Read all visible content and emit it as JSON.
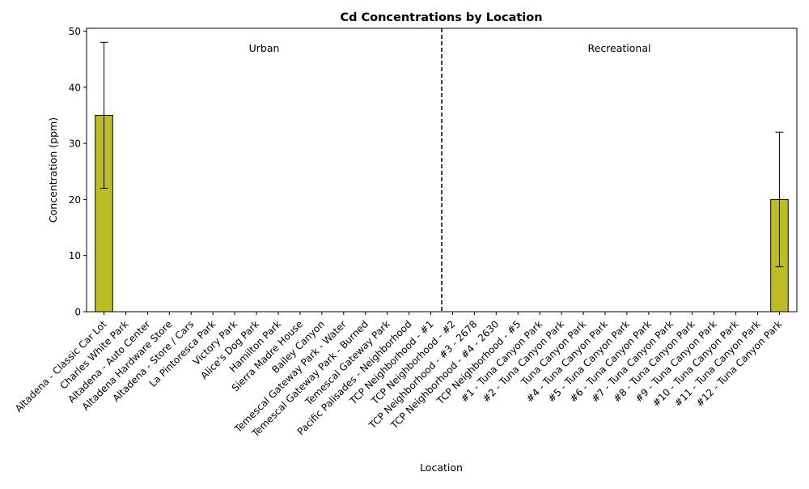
{
  "chart_data": {
    "type": "bar",
    "title": "Cd Concentrations by Location",
    "xlabel": "Location",
    "ylabel": "Concentration (ppm)",
    "ylim": [
      0,
      50.5
    ],
    "yticks": [
      0,
      10,
      20,
      30,
      40,
      50
    ],
    "grid": false,
    "categories": [
      "Altadena - Classic Car Lot",
      "Charles White Park",
      "Altadena - Auto Center",
      "Altadena Hardware Store",
      "Altadena - Store / Cars",
      "La Pintoresca Park",
      "Victory Park",
      "Alice's Dog Park",
      "Hamilton Park",
      "Sierra Madre House",
      "Bailey Canyon",
      "Temescal Gateway Park - Water",
      "Temescal Gateway Park - Burned",
      "Temescal Gateway Park",
      "Pacific Palisades - Neighborhood",
      "TCP Neighborhood - #1",
      "TCP Neighborhood - #2",
      "TCP Neighborhood - #3 - 2678",
      "TCP Neighborhood - #4 - 2630",
      "TCP Neighborhood - #5",
      "#1 - Tuna Canyon Park",
      "#2 - Tuna Canyon Park",
      "Tuna Canyon Park",
      "#4 - Tuna Canyon Park",
      "#5 - Tuna Canyon Park",
      "#6 - Tuna Canyon Park",
      "#7 - Tuna Canyon Park",
      "#8 - Tuna Canyon Park",
      "#9 - Tuna Canyon Park",
      "#10 - Tuna Canyon Park",
      "#11 - Tuna Canyon Park",
      "#12 - Tuna Canyon Park"
    ],
    "values": [
      35,
      null,
      null,
      null,
      null,
      null,
      null,
      null,
      null,
      null,
      null,
      null,
      null,
      null,
      null,
      null,
      null,
      null,
      null,
      null,
      null,
      null,
      null,
      null,
      null,
      null,
      null,
      null,
      null,
      null,
      null,
      20
    ],
    "errors": [
      13,
      null,
      null,
      null,
      null,
      null,
      null,
      null,
      null,
      null,
      null,
      null,
      null,
      null,
      null,
      null,
      null,
      null,
      null,
      null,
      null,
      null,
      null,
      null,
      null,
      null,
      null,
      null,
      null,
      null,
      null,
      12
    ],
    "bar_color": "#bcbd22",
    "divider_between": [
      15,
      16
    ],
    "annotations": [
      "Urban",
      "Recreational"
    ]
  }
}
